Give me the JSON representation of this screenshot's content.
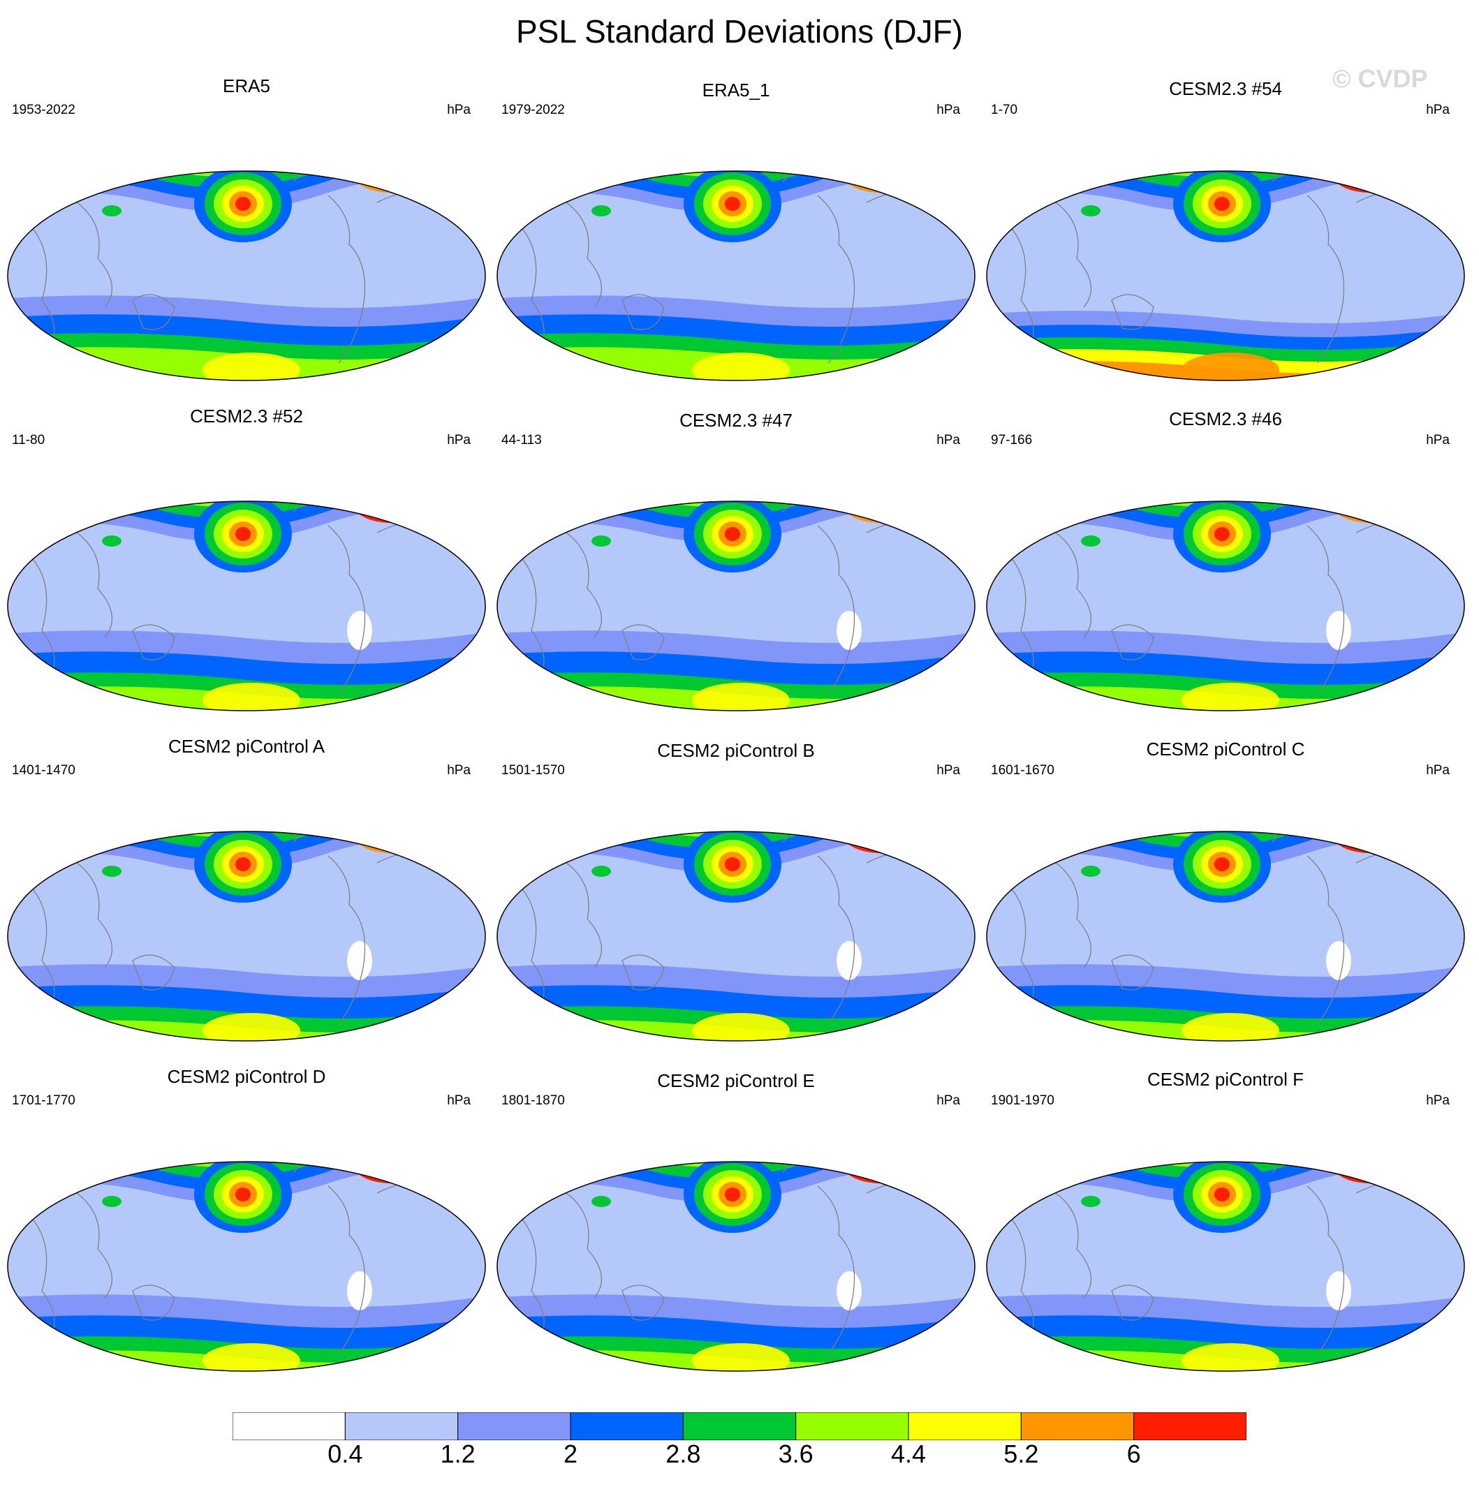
{
  "title": "PSL Standard Deviations (DJF)",
  "watermark": "© CVDP",
  "panels": [
    {
      "title": "ERA5",
      "period": "1953-2022",
      "units": "hPa"
    },
    {
      "title": "ERA5_1",
      "period": "1979-2022",
      "units": "hPa"
    },
    {
      "title": "CESM2.3 #54",
      "period": "1-70",
      "units": "hPa"
    },
    {
      "title": "CESM2.3 #52",
      "period": "11-80",
      "units": "hPa"
    },
    {
      "title": "CESM2.3 #47",
      "period": "44-113",
      "units": "hPa"
    },
    {
      "title": "CESM2.3 #46",
      "period": "97-166",
      "units": "hPa"
    },
    {
      "title": "CESM2 piControl A",
      "period": "1401-1470",
      "units": "hPa"
    },
    {
      "title": "CESM2 piControl B",
      "period": "1501-1570",
      "units": "hPa"
    },
    {
      "title": "CESM2 piControl C",
      "period": "1601-1670",
      "units": "hPa"
    },
    {
      "title": "CESM2 piControl D",
      "period": "1701-1770",
      "units": "hPa"
    },
    {
      "title": "CESM2 piControl E",
      "period": "1801-1870",
      "units": "hPa"
    },
    {
      "title": "CESM2 piControl F",
      "period": "1901-1970",
      "units": "hPa"
    }
  ],
  "colorbar": {
    "labels": [
      "0.4",
      "1.2",
      "2",
      "2.8",
      "3.6",
      "4.4",
      "5.2",
      "6"
    ],
    "colors": [
      "#ffffff",
      "#b4c8fa",
      "#8296fa",
      "#0064ff",
      "#00c832",
      "#96ff00",
      "#ffff00",
      "#ff9600",
      "#ff1e00"
    ]
  }
}
